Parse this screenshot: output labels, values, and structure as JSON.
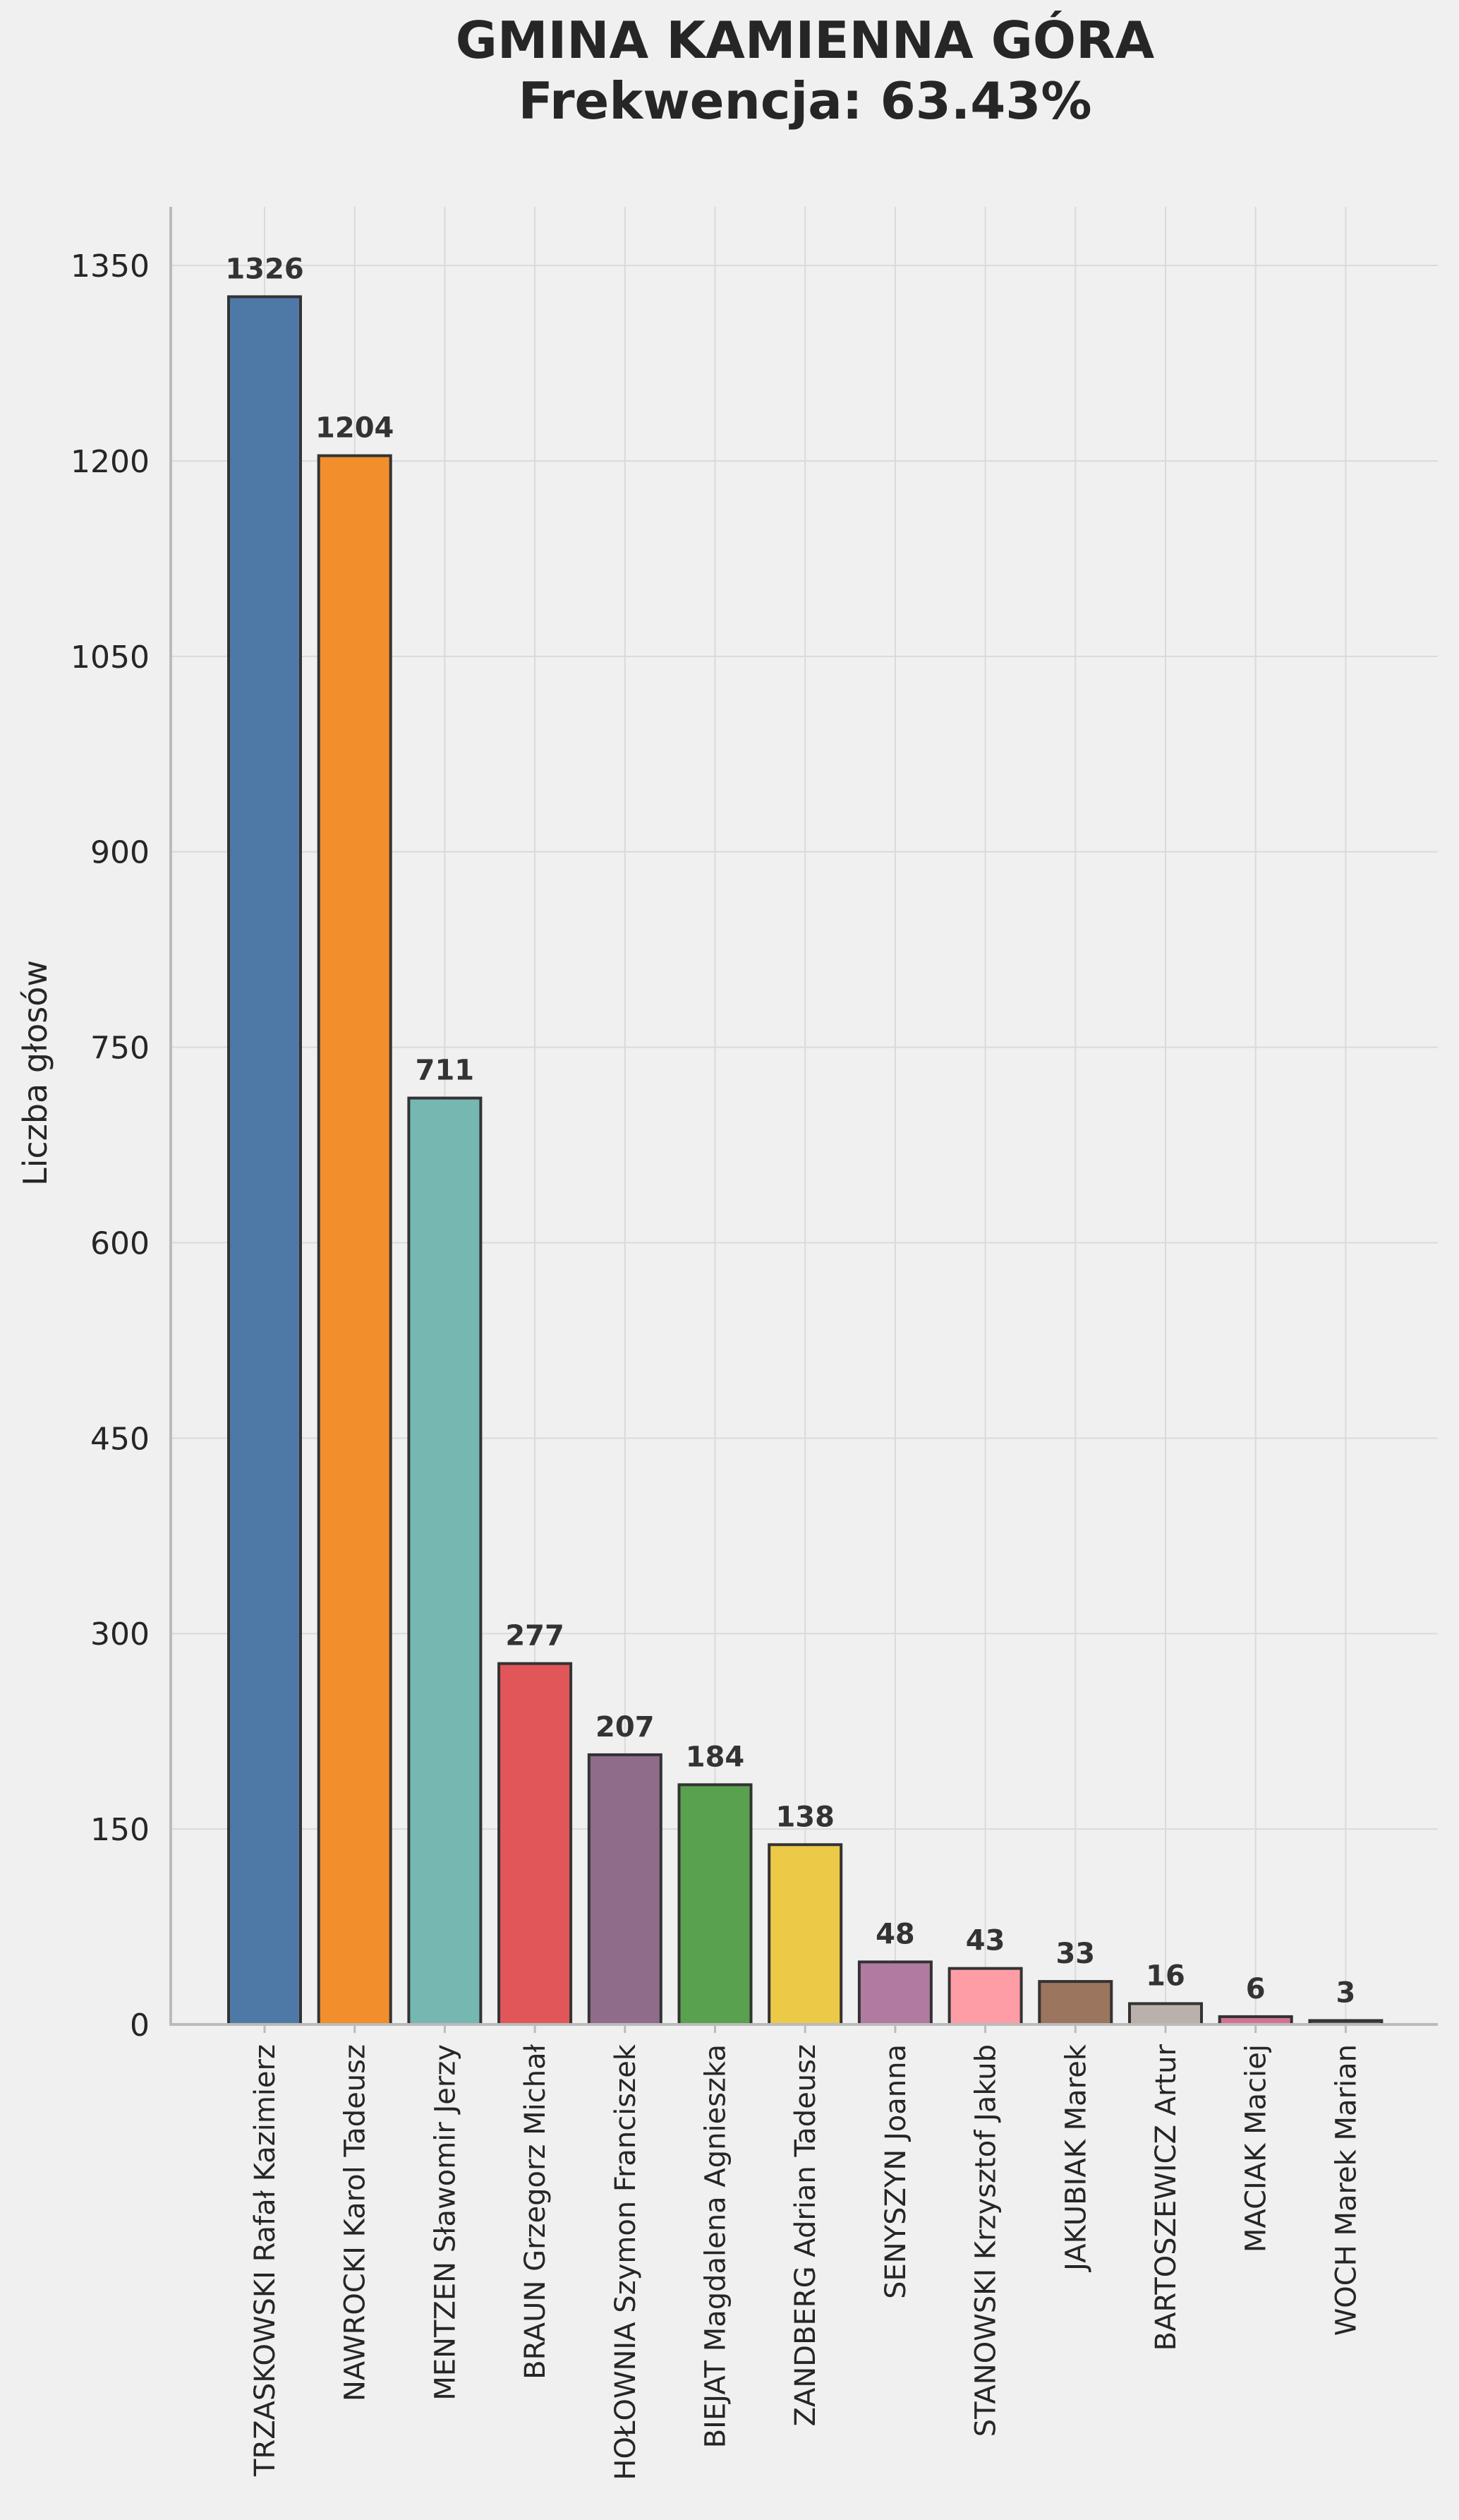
{
  "chart_data": {
    "type": "bar",
    "title": "GMINA KAMIENNA GÓRA",
    "subtitle": "Frekwencja: 63.43%",
    "xlabel": "",
    "ylabel": "Liczba głosów",
    "ylim": [
      0,
      1395
    ],
    "yticks": [
      0,
      150,
      300,
      450,
      600,
      750,
      900,
      1050,
      1200,
      1350
    ],
    "grid": true,
    "categories": [
      "TRZASKOWSKI Rafał Kazimierz",
      "NAWROCKI Karol Tadeusz",
      "MENTZEN Sławomir Jerzy",
      "BRAUN Grzegorz Michał",
      "HOŁOWNIA Szymon Franciszek",
      "BIEJAT Magdalena Agnieszka",
      "ZANDBERG Adrian Tadeusz",
      "SENYSZYN Joanna",
      "STANOWSKI Krzysztof Jakub",
      "JAKUBIAK Marek",
      "BARTOSZEWICZ Artur",
      "MACIAK Maciej",
      "WOCH Marek Marian"
    ],
    "values": [
      1326,
      1204,
      711,
      277,
      207,
      184,
      138,
      48,
      43,
      33,
      16,
      6,
      3
    ],
    "colors": [
      "#4e79a7",
      "#f28e2b",
      "#76b7b2",
      "#e15759",
      "#8e6c8a",
      "#59a14f",
      "#edc948",
      "#b07aa1",
      "#ff9da7",
      "#9c755f",
      "#bab0ac",
      "#d37295",
      "#555555"
    ],
    "bar_edge_color": "#333333",
    "background_color": "#f0f0f0",
    "grid_color": "#dadada",
    "text_color": "#262626"
  }
}
